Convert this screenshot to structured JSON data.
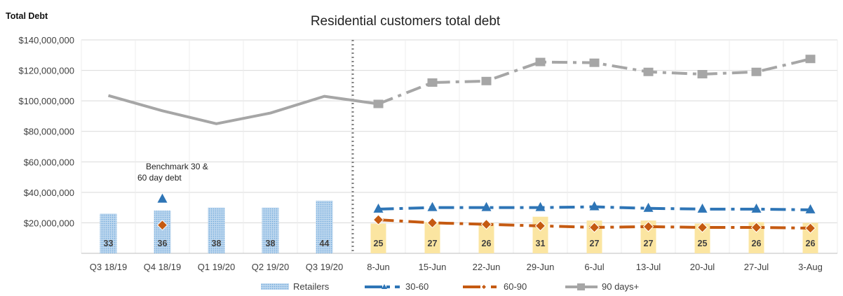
{
  "chart_data": {
    "type": "bar+line",
    "title": "Residential customers total debt",
    "ylabel": "Total Debt",
    "ylim": [
      0,
      140000000
    ],
    "y_ticks": [
      "$20,000,000",
      "$40,000,000",
      "$60,000,000",
      "$80,000,000",
      "$100,000,000",
      "$120,000,000",
      "$140,000,000"
    ],
    "y_tick_values": [
      20000000,
      40000000,
      60000000,
      80000000,
      100000000,
      120000000,
      140000000
    ],
    "categories": [
      "Q3 18/19",
      "Q4 18/19",
      "Q1 19/20",
      "Q2 19/20",
      "Q3 19/20",
      "8-Jun",
      "15-Jun",
      "22-Jun",
      "29-Jun",
      "6-Jul",
      "13-Jul",
      "20-Jul",
      "27-Jul",
      "3-Aug"
    ],
    "annotation": "Benchmark 30 & 60 day debt",
    "series": [
      {
        "name": "Retailers",
        "kind": "bar",
        "values": [
          26000000,
          28000000,
          30000000,
          30000000,
          34500000,
          19500000,
          20500000,
          20000000,
          24000000,
          21500000,
          21500000,
          19500000,
          20500000,
          20000000
        ],
        "counts": [
          "33",
          "36",
          "38",
          "38",
          "44",
          "25",
          "27",
          "26",
          "31",
          "27",
          "27",
          "25",
          "26",
          "26"
        ]
      },
      {
        "name": "30-60",
        "kind": "line",
        "color": "#2e75b6",
        "values": [
          null,
          35500000,
          null,
          null,
          null,
          29000000,
          30000000,
          30000000,
          30000000,
          30500000,
          29500000,
          29000000,
          29000000,
          28500000
        ]
      },
      {
        "name": "60-90",
        "kind": "line",
        "color": "#c55a11",
        "values": [
          null,
          18500000,
          null,
          null,
          null,
          22000000,
          20000000,
          19000000,
          18000000,
          17000000,
          17500000,
          17000000,
          17000000,
          16500000
        ]
      },
      {
        "name": "90 days+",
        "kind": "line",
        "color": "#a6a6a6",
        "values": [
          103500000,
          93500000,
          85000000,
          92000000,
          103000000,
          98000000,
          112000000,
          113000000,
          125500000,
          125000000,
          119000000,
          117500000,
          119000000,
          127500000
        ]
      }
    ],
    "colors": {
      "quarter_bar": "#9dc3e6",
      "weekly_bar": "#fbe5a1",
      "grid": "#d9d9d9",
      "divider": "#7f7f7f"
    },
    "legend_position": "bottom",
    "grid": true
  }
}
